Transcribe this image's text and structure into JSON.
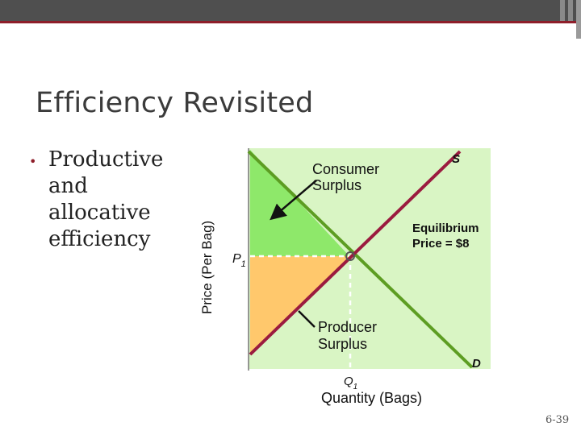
{
  "slide": {
    "title": "Efficiency Revisited",
    "bullets": [
      "Productive and allocative efficiency"
    ],
    "slide_number": "6-39"
  },
  "diagram": {
    "y_axis_label": "Price  (Per Bag)",
    "x_axis_label": "Quantity (Bags)",
    "price_label": "P",
    "price_subscript": "1",
    "quantity_label": "Q",
    "quantity_subscript": "1",
    "supply_label": "S",
    "demand_label": "D",
    "consumer_surplus_line1": "Consumer",
    "consumer_surplus_line2": "Surplus",
    "producer_surplus_line1": "Producer",
    "producer_surplus_line2": "Surplus",
    "equilibrium_line1": "Equilibrium",
    "equilibrium_line2": "Price = $8",
    "colors": {
      "background": "#d9f5c4",
      "consumer_surplus": "#8ee86a",
      "producer_surplus": "#ffc86c",
      "supply": "#9b1b3f",
      "demand": "#5d9d22"
    }
  }
}
